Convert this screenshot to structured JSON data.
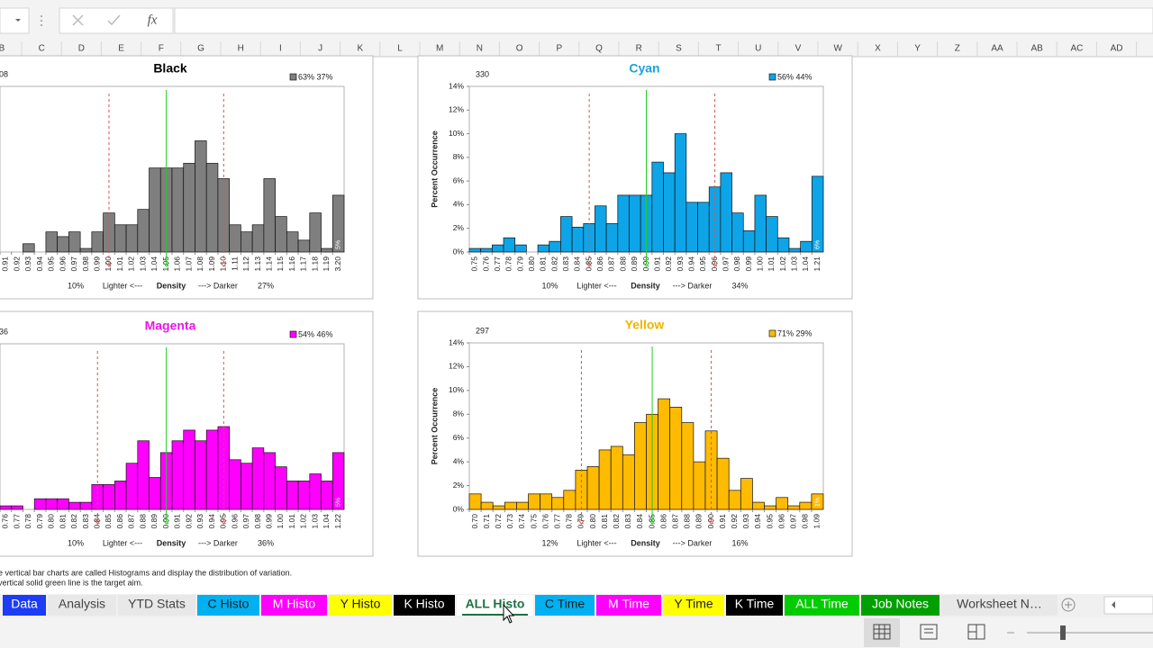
{
  "formula_bar": {
    "fx": "fx"
  },
  "columns": [
    "B",
    "C",
    "D",
    "E",
    "F",
    "G",
    "H",
    "I",
    "J",
    "K",
    "L",
    "M",
    "N",
    "O",
    "P",
    "Q",
    "R",
    "S",
    "T",
    "U",
    "V",
    "W",
    "X",
    "Y",
    "Z",
    "AA",
    "AB",
    "AC",
    "AD"
  ],
  "chart_data": [
    {
      "type": "bar",
      "title": "Black",
      "title_color": "#000000",
      "count": "08",
      "legend_label": "63% 37%",
      "color": "#7f7f7f",
      "categories": [
        "0.91",
        "0.92",
        "0.93",
        "0.94",
        "0.95",
        "0.96",
        "0.97",
        "0.98",
        "0.99",
        "1.00",
        "1.01",
        "1.02",
        "1.03",
        "1.04",
        "1.05",
        "1.06",
        "1.07",
        "1.08",
        "1.09",
        "1.10",
        "1.11",
        "1.12",
        "1.13",
        "1.14",
        "1.15",
        "1.16",
        "1.17",
        "1.18",
        "1.19",
        "3.20"
      ],
      "values": [
        0,
        0,
        0.7,
        0,
        1.7,
        1.3,
        1.7,
        0.3,
        1.7,
        3.3,
        2.3,
        2.3,
        3.6,
        7.1,
        7.1,
        7.1,
        7.5,
        9.4,
        7.5,
        6.2,
        2.3,
        1.7,
        2.3,
        6.2,
        3.0,
        1.7,
        1.0,
        3.3,
        0.3,
        4.8
      ],
      "last_label": "5%",
      "ylim": [
        0,
        14
      ],
      "footer": [
        "10%",
        "Lighter <---",
        "Density",
        "---> Darker",
        "27%"
      ],
      "lower_limit": 1.0,
      "target": 1.05,
      "upper_limit": 1.1
    },
    {
      "type": "bar",
      "title": "Cyan",
      "title_color": "#1aa3e0",
      "count": "330",
      "legend_label": "56% 44%",
      "color": "#0ea5e8",
      "categories": [
        "0.75",
        "0.76",
        "0.77",
        "0.78",
        "0.79",
        "0.80",
        "0.81",
        "0.82",
        "0.83",
        "0.84",
        "0.85",
        "0.86",
        "0.87",
        "0.88",
        "0.89",
        "0.90",
        "0.91",
        "0.92",
        "0.93",
        "0.94",
        "0.95",
        "0.96",
        "0.97",
        "0.98",
        "0.99",
        "1.00",
        "1.01",
        "1.02",
        "1.03",
        "1.04",
        "1.21"
      ],
      "values": [
        0.3,
        0.3,
        0.6,
        1.2,
        0.6,
        0,
        0.6,
        0.9,
        3.0,
        2.1,
        2.4,
        3.9,
        2.4,
        4.8,
        4.8,
        4.8,
        7.6,
        6.7,
        10.0,
        4.2,
        4.2,
        5.5,
        6.7,
        3.3,
        1.8,
        4.8,
        3.0,
        1.2,
        0.3,
        0.9,
        6.4
      ],
      "last_label": "6%",
      "ylim": [
        0,
        14
      ],
      "yticks": [
        {
          "value": 0,
          "label": "0%"
        },
        {
          "value": 2,
          "label": "2%"
        },
        {
          "value": 4,
          "label": "4%"
        },
        {
          "value": 6,
          "label": "6%"
        },
        {
          "value": 8,
          "label": "8%"
        },
        {
          "value": 10,
          "label": "10%"
        },
        {
          "value": 12,
          "label": "12%"
        },
        {
          "value": 14,
          "label": "14%"
        }
      ],
      "ylabel": "Percent Occurrence",
      "footer": [
        "10%",
        "Lighter <---",
        "Density",
        "---> Darker",
        "34%"
      ],
      "lower_limit": 0.85,
      "target": 0.9,
      "upper_limit": 0.96
    },
    {
      "type": "bar",
      "title": "Magenta",
      "title_color": "#e619e6",
      "count": "36",
      "legend_label": "54% 46%",
      "color": "#ff00ff",
      "categories": [
        "0.76",
        "0.77",
        "0.78",
        "0.79",
        "0.80",
        "0.81",
        "0.82",
        "0.83",
        "0.84",
        "0.85",
        "0.86",
        "0.87",
        "0.88",
        "0.89",
        "0.90",
        "0.91",
        "0.92",
        "0.93",
        "0.94",
        "0.95",
        "0.96",
        "0.97",
        "0.98",
        "0.99",
        "1.00",
        "1.01",
        "1.02",
        "1.03",
        "1.04",
        "1.22"
      ],
      "values": [
        0.3,
        0.3,
        0,
        0.9,
        0.9,
        0.9,
        0.6,
        0.6,
        2.1,
        2.1,
        2.4,
        3.9,
        5.8,
        2.7,
        4.8,
        5.8,
        6.7,
        5.8,
        6.7,
        7.0,
        4.2,
        3.9,
        5.2,
        4.8,
        3.6,
        2.4,
        2.4,
        3.0,
        2.4,
        4.8
      ],
      "last_label": "5%",
      "ylim": [
        0,
        14
      ],
      "footer": [
        "10%",
        "Lighter <---",
        "Density",
        "---> Darker",
        "36%"
      ],
      "lower_limit": 0.84,
      "target": 0.9,
      "upper_limit": 0.95
    },
    {
      "type": "bar",
      "title": "Yellow",
      "title_color": "#f0b400",
      "count": "297",
      "legend_label": "71% 29%",
      "color": "#ffbb00",
      "categories": [
        "0.70",
        "0.71",
        "0.72",
        "0.73",
        "0.74",
        "0.75",
        "0.76",
        "0.77",
        "0.78",
        "0.79",
        "0.80",
        "0.81",
        "0.82",
        "0.83",
        "0.84",
        "0.85",
        "0.86",
        "0.87",
        "0.88",
        "0.89",
        "0.90",
        "0.91",
        "0.92",
        "0.93",
        "0.94",
        "0.95",
        "0.96",
        "0.97",
        "0.98",
        "1.09"
      ],
      "values": [
        1.3,
        0.6,
        0.3,
        0.6,
        0.6,
        1.3,
        1.3,
        1.0,
        1.6,
        3.3,
        3.6,
        5.0,
        5.3,
        4.6,
        7.3,
        8.0,
        9.3,
        8.6,
        7.3,
        4.0,
        6.6,
        4.3,
        1.6,
        2.6,
        0.6,
        0.3,
        1.0,
        0.3,
        0.6,
        1.3
      ],
      "last_label": "1%",
      "ylim": [
        0,
        14
      ],
      "yticks": [
        {
          "value": 0,
          "label": "0%"
        },
        {
          "value": 2,
          "label": "2%"
        },
        {
          "value": 4,
          "label": "4%"
        },
        {
          "value": 6,
          "label": "6%"
        },
        {
          "value": 8,
          "label": "8%"
        },
        {
          "value": 10,
          "label": "10%"
        },
        {
          "value": 12,
          "label": "12%"
        },
        {
          "value": 14,
          "label": "14%"
        }
      ],
      "ylabel": "Percent Occurrence",
      "footer": [
        "12%",
        "Lighter <---",
        "Density",
        "---> Darker",
        "16%"
      ],
      "lower_limit": 0.79,
      "target": 0.85,
      "upper_limit": 0.9
    }
  ],
  "notes": [
    "e vertical bar charts are called Histograms and display the distribution of variation.",
    "vertical solid green line is the target aim."
  ],
  "sheet_tabs": [
    {
      "name": "Data",
      "color": "#1c3cf5",
      "text_color": "#ffffff"
    },
    {
      "name": "Analysis",
      "color": "#e8e8e8",
      "text_color": "#444444"
    },
    {
      "name": "YTD Stats",
      "color": "#e8e8e8",
      "text_color": "#444444"
    },
    {
      "name": "C Histo",
      "color": "#00b0f0",
      "text_color": "#222222"
    },
    {
      "name": "M Histo",
      "color": "#ff00ff",
      "text_color": "#ffffff"
    },
    {
      "name": "Y Histo",
      "color": "#ffff00",
      "text_color": "#222222"
    },
    {
      "name": "K Histo",
      "color": "#000000",
      "text_color": "#ffffff"
    },
    {
      "name": "ALL Histo",
      "color": "#ffffff",
      "text_color": "#1e7145",
      "active": true
    },
    {
      "name": "C Time",
      "color": "#00b0f0",
      "text_color": "#222222"
    },
    {
      "name": "M Time",
      "color": "#ff00ff",
      "text_color": "#ffffff"
    },
    {
      "name": "Y Time",
      "color": "#ffff00",
      "text_color": "#222222"
    },
    {
      "name": "K Time",
      "color": "#000000",
      "text_color": "#ffffff"
    },
    {
      "name": "ALL Time",
      "color": "#00cc00",
      "text_color": "#ffffff"
    },
    {
      "name": "Job Notes",
      "color": "#00a000",
      "text_color": "#ffffff"
    },
    {
      "name": "Worksheet N…",
      "color": "#e8e8e8",
      "text_color": "#444444"
    }
  ]
}
